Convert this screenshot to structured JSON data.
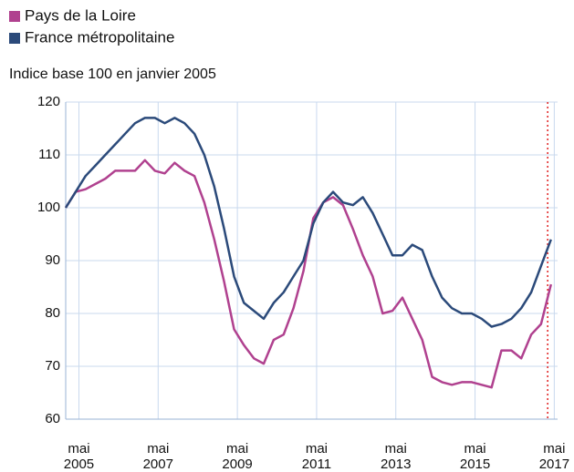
{
  "chart_data": {
    "type": "line",
    "subtitle": "Indice base 100 en janvier 2005",
    "x": [
      "2005-01",
      "2005-04",
      "2005-07",
      "2005-10",
      "2006-01",
      "2006-04",
      "2006-07",
      "2006-10",
      "2007-01",
      "2007-04",
      "2007-07",
      "2007-10",
      "2008-01",
      "2008-04",
      "2008-07",
      "2008-10",
      "2009-01",
      "2009-04",
      "2009-07",
      "2009-10",
      "2010-01",
      "2010-04",
      "2010-07",
      "2010-10",
      "2011-01",
      "2011-04",
      "2011-07",
      "2011-10",
      "2012-01",
      "2012-04",
      "2012-07",
      "2012-10",
      "2013-01",
      "2013-04",
      "2013-07",
      "2013-10",
      "2014-01",
      "2014-04",
      "2014-07",
      "2014-10",
      "2015-01",
      "2015-04",
      "2015-07",
      "2015-10",
      "2016-01",
      "2016-04",
      "2016-07",
      "2016-10",
      "2017-01",
      "2017-04"
    ],
    "series": [
      {
        "name": "Pays de la Loire",
        "color": "#b0418f",
        "values": [
          100,
          103,
          103.5,
          104.5,
          105.5,
          107,
          107,
          107,
          109,
          107,
          106.5,
          108.5,
          107,
          106,
          101,
          94,
          86,
          77,
          74,
          71.5,
          70.5,
          75,
          76,
          81,
          88,
          98,
          101,
          102,
          100.5,
          96,
          91,
          87,
          80,
          80.5,
          83,
          79,
          75,
          68,
          67,
          66.5,
          67,
          67,
          66.5,
          66,
          73,
          73,
          71.5,
          76,
          78,
          85.5
        ]
      },
      {
        "name": "France métropolitaine",
        "color": "#2b4a7a",
        "values": [
          100,
          103,
          106,
          108,
          110,
          112,
          114,
          116,
          117,
          117,
          116,
          117,
          116,
          114,
          110,
          104,
          96,
          87,
          82,
          80.5,
          79,
          82,
          84,
          87,
          90,
          97,
          101,
          103,
          101,
          100.5,
          102,
          99,
          95,
          91,
          91,
          93,
          92,
          87,
          83,
          81,
          80,
          80,
          79,
          77.5,
          78,
          79,
          81,
          84,
          89,
          94
        ]
      }
    ],
    "xlim": [
      "2005-01",
      "2017-06"
    ],
    "xticks": [
      {
        "value": "2005-05",
        "label": "mai 2005"
      },
      {
        "value": "2007-05",
        "label": "mai 2007"
      },
      {
        "value": "2009-05",
        "label": "mai 2009"
      },
      {
        "value": "2011-05",
        "label": "mai 2011"
      },
      {
        "value": "2013-05",
        "label": "mai 2013"
      },
      {
        "value": "2015-05",
        "label": "mai 2015"
      },
      {
        "value": "2017-05",
        "label": "mai 2017"
      }
    ],
    "ylim": [
      60,
      120
    ],
    "yticks": [
      60,
      70,
      80,
      90,
      100,
      110,
      120
    ],
    "grid": true,
    "marker_x": "2017-03",
    "marker_color": "#e02020"
  }
}
